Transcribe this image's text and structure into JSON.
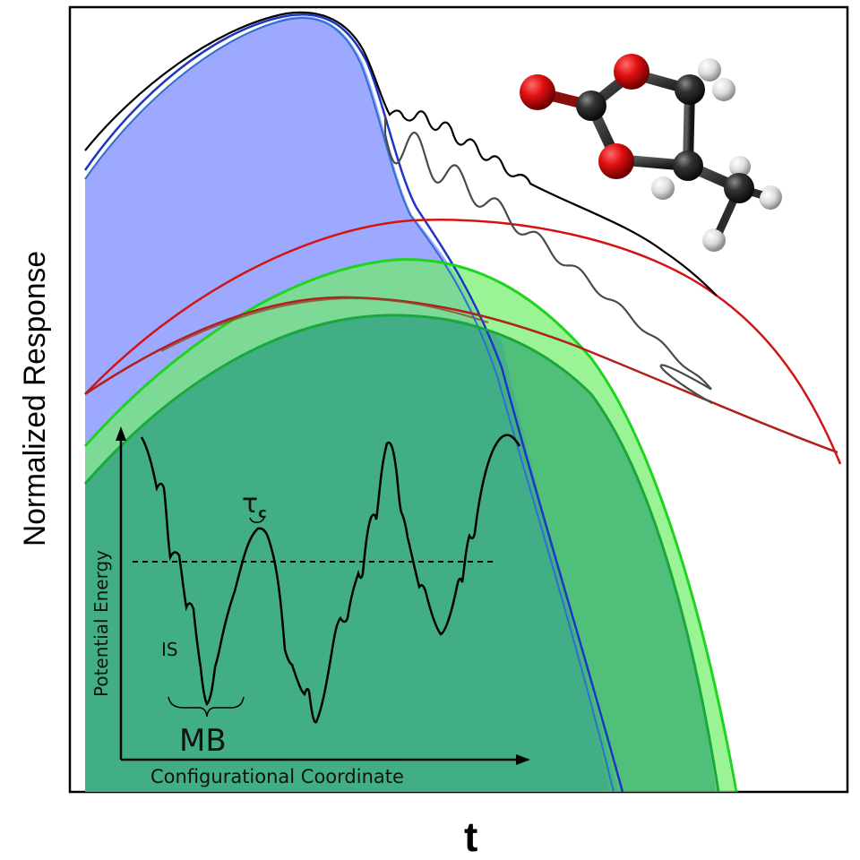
{
  "figure": {
    "y_axis_label": "Normalized Response",
    "x_axis_label": "t",
    "colors": {
      "black": "#000000",
      "blue_fill": "#8c99ff",
      "blue_line": "#1b37c4",
      "red_line": "#d41414",
      "green_fill_dark": "#3fb87a",
      "green_fill_light": "#6ff06a",
      "green_line": "#1fd41f",
      "grey_line": "#4a4a4a"
    }
  },
  "inset": {
    "y_axis_label": "Potential Energy",
    "x_axis_label": "Configurational Coordinate",
    "tau_symbol": "τ",
    "tau_subscript": "c",
    "is_label": "IS",
    "mb_label": "MB"
  },
  "molecule": {
    "atoms_icon": "ball-and-stick-molecule-icon"
  }
}
